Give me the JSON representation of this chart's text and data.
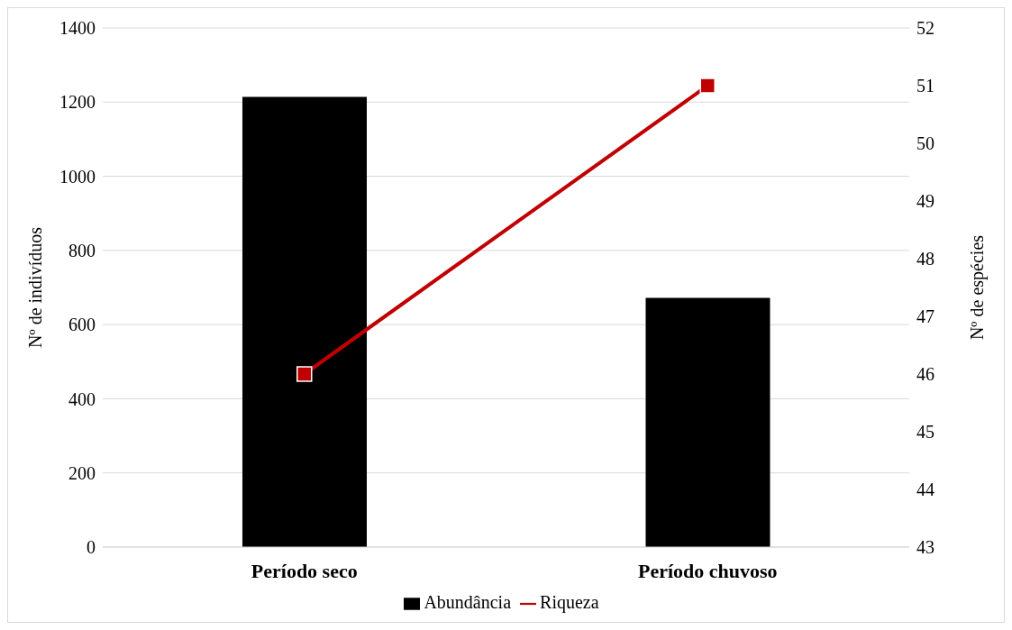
{
  "chart_data": {
    "type": "bar",
    "categories": [
      "Período seco",
      "Período chuvoso"
    ],
    "series": [
      {
        "name": "Abundância",
        "color": "#000000",
        "values": [
          1214,
          672
        ]
      },
      {
        "name": "Riqueza",
        "type": "line",
        "axis": "y2",
        "color": "#c00000",
        "values": [
          46,
          51
        ],
        "marker": "square"
      }
    ],
    "ylabel": "Nº de indivíduos",
    "y2label": "Nº de espécies",
    "ylim": [
      0,
      1400
    ],
    "yticks": [
      0,
      200,
      400,
      600,
      800,
      1000,
      1200,
      1400
    ],
    "y2lim": [
      43,
      52
    ],
    "y2ticks": [
      43,
      44,
      45,
      46,
      47,
      48,
      49,
      50,
      51,
      52
    ],
    "grid": "y",
    "legend": "bottom"
  }
}
